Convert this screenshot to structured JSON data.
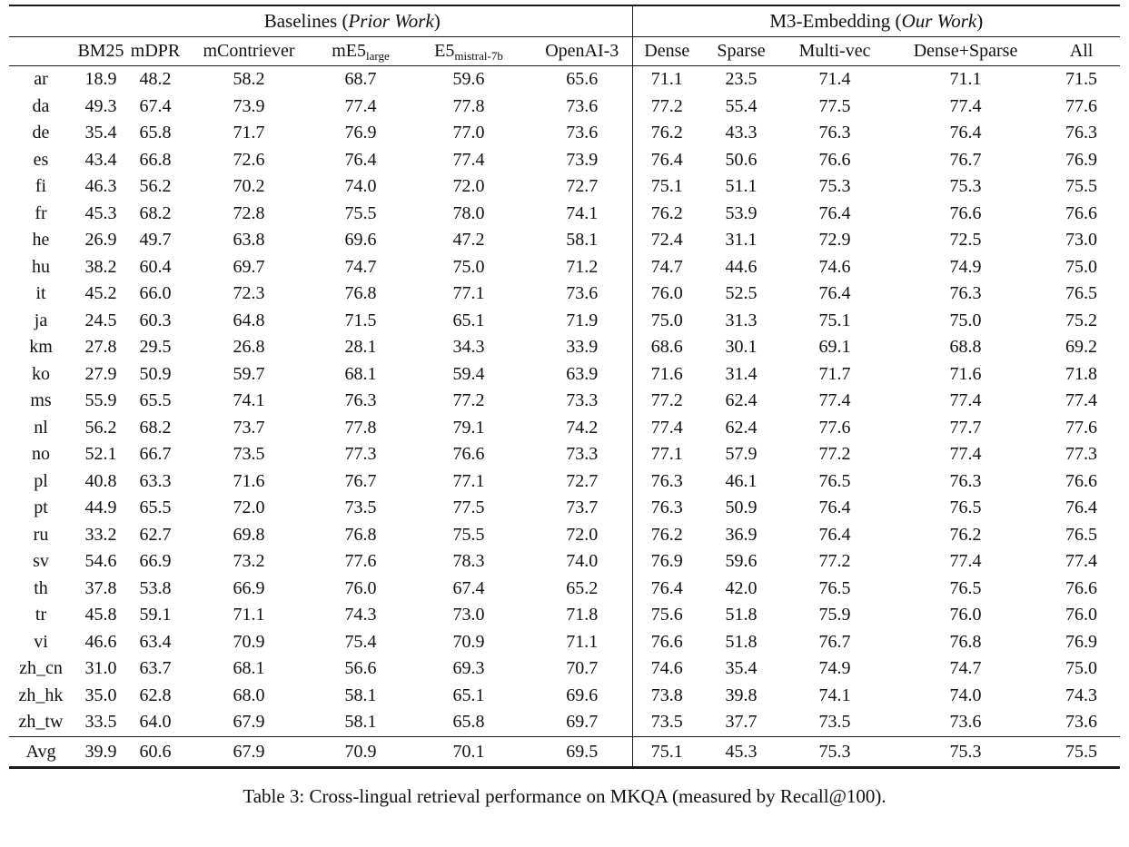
{
  "colors": {
    "background": "#ffffff",
    "text": "#111111",
    "rule": "#1a1a1a"
  },
  "caption": "Table 3: Cross-lingual retrieval performance on MKQA (measured by Recall@100).",
  "table": {
    "group_headers": [
      {
        "id": "baselines",
        "prefix": "Baselines (",
        "italic": "Prior Work",
        "suffix": ")",
        "colspan": 6
      },
      {
        "id": "m3-embedding",
        "prefix": "M3-Embedding (",
        "italic": "Our Work",
        "suffix": ")",
        "colspan": 5
      }
    ],
    "columns": [
      {
        "label": "BM25",
        "sub": ""
      },
      {
        "label": "mDPR",
        "sub": ""
      },
      {
        "label": "mContriever",
        "sub": ""
      },
      {
        "label": "mE5",
        "sub": "large"
      },
      {
        "label": "E5",
        "sub": "mistral-7b"
      },
      {
        "label": "OpenAI-3",
        "sub": ""
      },
      {
        "label": "Dense",
        "sub": ""
      },
      {
        "label": "Sparse",
        "sub": ""
      },
      {
        "label": "Multi-vec",
        "sub": ""
      },
      {
        "label": "Dense+Sparse",
        "sub": ""
      },
      {
        "label": "All",
        "sub": ""
      }
    ],
    "rows": [
      {
        "lang": "ar",
        "values": [
          "18.9",
          "48.2",
          "58.2",
          "68.7",
          "59.6",
          "65.6",
          "71.1",
          "23.5",
          "71.4",
          "71.1",
          "71.5"
        ],
        "bold": [
          10
        ]
      },
      {
        "lang": "da",
        "values": [
          "49.3",
          "67.4",
          "73.9",
          "77.4",
          "77.8",
          "73.6",
          "77.2",
          "55.4",
          "77.5",
          "77.4",
          "77.6"
        ],
        "bold": [
          4
        ]
      },
      {
        "lang": "de",
        "values": [
          "35.4",
          "65.8",
          "71.7",
          "76.9",
          "77.0",
          "73.6",
          "76.2",
          "43.3",
          "76.3",
          "76.4",
          "76.3"
        ],
        "bold": [
          4
        ]
      },
      {
        "lang": "es",
        "values": [
          "43.4",
          "66.8",
          "72.6",
          "76.4",
          "77.4",
          "73.9",
          "76.4",
          "50.6",
          "76.6",
          "76.7",
          "76.9"
        ],
        "bold": [
          4
        ]
      },
      {
        "lang": "fi",
        "values": [
          "46.3",
          "56.2",
          "70.2",
          "74.0",
          "72.0",
          "72.7",
          "75.1",
          "51.1",
          "75.3",
          "75.3",
          "75.5"
        ],
        "bold": [
          10
        ]
      },
      {
        "lang": "fr",
        "values": [
          "45.3",
          "68.2",
          "72.8",
          "75.5",
          "78.0",
          "74.1",
          "76.2",
          "53.9",
          "76.4",
          "76.6",
          "76.6"
        ],
        "bold": [
          4
        ]
      },
      {
        "lang": "he",
        "values": [
          "26.9",
          "49.7",
          "63.8",
          "69.6",
          "47.2",
          "58.1",
          "72.4",
          "31.1",
          "72.9",
          "72.5",
          "73.0"
        ],
        "bold": [
          10
        ]
      },
      {
        "lang": "hu",
        "values": [
          "38.2",
          "60.4",
          "69.7",
          "74.7",
          "75.0",
          "71.2",
          "74.7",
          "44.6",
          "74.6",
          "74.9",
          "75.0"
        ],
        "bold": [
          4,
          10
        ]
      },
      {
        "lang": "it",
        "values": [
          "45.2",
          "66.0",
          "72.3",
          "76.8",
          "77.1",
          "73.6",
          "76.0",
          "52.5",
          "76.4",
          "76.3",
          "76.5"
        ],
        "bold": [
          4
        ]
      },
      {
        "lang": "ja",
        "values": [
          "24.5",
          "60.3",
          "64.8",
          "71.5",
          "65.1",
          "71.9",
          "75.0",
          "31.3",
          "75.1",
          "75.0",
          "75.2"
        ],
        "bold": [
          10
        ]
      },
      {
        "lang": "km",
        "values": [
          "27.8",
          "29.5",
          "26.8",
          "28.1",
          "34.3",
          "33.9",
          "68.6",
          "30.1",
          "69.1",
          "68.8",
          "69.2"
        ],
        "bold": [
          10
        ]
      },
      {
        "lang": "ko",
        "values": [
          "27.9",
          "50.9",
          "59.7",
          "68.1",
          "59.4",
          "63.9",
          "71.6",
          "31.4",
          "71.7",
          "71.6",
          "71.8"
        ],
        "bold": [
          10
        ]
      },
      {
        "lang": "ms",
        "values": [
          "55.9",
          "65.5",
          "74.1",
          "76.3",
          "77.2",
          "73.3",
          "77.2",
          "62.4",
          "77.4",
          "77.4",
          "77.4"
        ],
        "bold": [
          8,
          9,
          10
        ]
      },
      {
        "lang": "nl",
        "values": [
          "56.2",
          "68.2",
          "73.7",
          "77.8",
          "79.1",
          "74.2",
          "77.4",
          "62.4",
          "77.6",
          "77.7",
          "77.6"
        ],
        "bold": [
          4
        ]
      },
      {
        "lang": "no",
        "values": [
          "52.1",
          "66.7",
          "73.5",
          "77.3",
          "76.6",
          "73.3",
          "77.1",
          "57.9",
          "77.2",
          "77.4",
          "77.3"
        ],
        "bold": [
          9
        ]
      },
      {
        "lang": "pl",
        "values": [
          "40.8",
          "63.3",
          "71.6",
          "76.7",
          "77.1",
          "72.7",
          "76.3",
          "46.1",
          "76.5",
          "76.3",
          "76.6"
        ],
        "bold": [
          4
        ]
      },
      {
        "lang": "pt",
        "values": [
          "44.9",
          "65.5",
          "72.0",
          "73.5",
          "77.5",
          "73.7",
          "76.3",
          "50.9",
          "76.4",
          "76.5",
          "76.4"
        ],
        "bold": [
          4
        ]
      },
      {
        "lang": "ru",
        "values": [
          "33.2",
          "62.7",
          "69.8",
          "76.8",
          "75.5",
          "72.0",
          "76.2",
          "36.9",
          "76.4",
          "76.2",
          "76.5"
        ],
        "bold": [
          3
        ]
      },
      {
        "lang": "sv",
        "values": [
          "54.6",
          "66.9",
          "73.2",
          "77.6",
          "78.3",
          "74.0",
          "76.9",
          "59.6",
          "77.2",
          "77.4",
          "77.4"
        ],
        "bold": [
          4
        ]
      },
      {
        "lang": "th",
        "values": [
          "37.8",
          "53.8",
          "66.9",
          "76.0",
          "67.4",
          "65.2",
          "76.4",
          "42.0",
          "76.5",
          "76.5",
          "76.6"
        ],
        "bold": [
          10
        ]
      },
      {
        "lang": "tr",
        "values": [
          "45.8",
          "59.1",
          "71.1",
          "74.3",
          "73.0",
          "71.8",
          "75.6",
          "51.8",
          "75.9",
          "76.0",
          "76.0"
        ],
        "bold": [
          9,
          10
        ]
      },
      {
        "lang": "vi",
        "values": [
          "46.6",
          "63.4",
          "70.9",
          "75.4",
          "70.9",
          "71.1",
          "76.6",
          "51.8",
          "76.7",
          "76.8",
          "76.9"
        ],
        "bold": [
          10
        ]
      },
      {
        "lang": "zh_cn",
        "values": [
          "31.0",
          "63.7",
          "68.1",
          "56.6",
          "69.3",
          "70.7",
          "74.6",
          "35.4",
          "74.9",
          "74.7",
          "75.0"
        ],
        "bold": [
          10
        ]
      },
      {
        "lang": "zh_hk",
        "values": [
          "35.0",
          "62.8",
          "68.0",
          "58.1",
          "65.1",
          "69.6",
          "73.8",
          "39.8",
          "74.1",
          "74.0",
          "74.3"
        ],
        "bold": [
          10
        ]
      },
      {
        "lang": "zh_tw",
        "values": [
          "33.5",
          "64.0",
          "67.9",
          "58.1",
          "65.8",
          "69.7",
          "73.5",
          "37.7",
          "73.5",
          "73.6",
          "73.6"
        ],
        "bold": [
          9,
          10
        ]
      }
    ],
    "footer_row": {
      "lang": "Avg",
      "values": [
        "39.9",
        "60.6",
        "67.9",
        "70.9",
        "70.1",
        "69.5",
        "75.1",
        "45.3",
        "75.3",
        "75.3",
        "75.5"
      ],
      "bold": [
        10
      ]
    }
  },
  "chart_data": {
    "type": "table",
    "title": "Cross-lingual retrieval performance on MKQA (Recall@100)",
    "column_groups": [
      "Baselines (Prior Work)",
      "M3-Embedding (Our Work)"
    ],
    "columns": [
      "BM25",
      "mDPR",
      "mContriever",
      "mE5_large",
      "E5_mistral-7b",
      "OpenAI-3",
      "Dense",
      "Sparse",
      "Multi-vec",
      "Dense+Sparse",
      "All"
    ],
    "row_labels": [
      "ar",
      "da",
      "de",
      "es",
      "fi",
      "fr",
      "he",
      "hu",
      "it",
      "ja",
      "km",
      "ko",
      "ms",
      "nl",
      "no",
      "pl",
      "pt",
      "ru",
      "sv",
      "th",
      "tr",
      "vi",
      "zh_cn",
      "zh_hk",
      "zh_tw",
      "Avg"
    ]
  }
}
